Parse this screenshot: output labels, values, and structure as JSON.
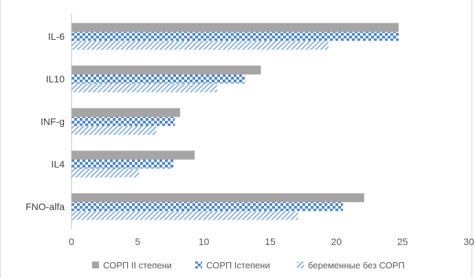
{
  "chart_data": {
    "type": "bar",
    "orientation": "horizontal",
    "categories": [
      "IL-6",
      "IL10",
      "INF-g",
      "IL4",
      "FNO-alfa"
    ],
    "series": [
      {
        "name": "СОРП II степени",
        "values": [
          24.7,
          14.3,
          8.2,
          9.3,
          22.1
        ],
        "pattern": "solid",
        "color": "#a5a5a5"
      },
      {
        "name": "СОРП Iстепени",
        "values": [
          24.7,
          13.1,
          7.8,
          7.7,
          20.5
        ],
        "pattern": "checker",
        "color": "#4a86d4"
      },
      {
        "name": "беременные без СОРП",
        "values": [
          19.4,
          11.0,
          6.4,
          5.1,
          17.1
        ],
        "pattern": "diagonal",
        "color": "#8fb3e3"
      }
    ],
    "x_ticks": [
      "0",
      "5",
      "10",
      "15",
      "20",
      "25",
      "30"
    ],
    "xlim": [
      0,
      30
    ],
    "grid": false,
    "legend_position": "bottom"
  },
  "colors": {
    "axis": "#bfbfbf",
    "checker_light": "#ffffff",
    "diagonal_line": "#8fb3e3"
  }
}
